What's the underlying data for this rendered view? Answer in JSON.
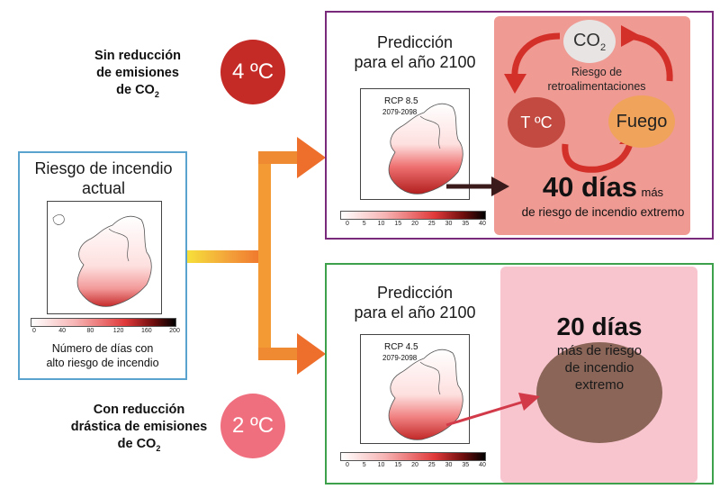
{
  "left": {
    "scenario_high": [
      "Sin reducción",
      "de emisiones",
      "de CO"
    ],
    "scenario_low": [
      "Con reducción",
      "drástica de emisiones",
      "de CO"
    ],
    "co2_subscript": "2",
    "temp_high": "4 ºC",
    "temp_low": "2 ºC",
    "current_box": {
      "title": "Riesgo de incendio actual",
      "colorbar_ticks": [
        "0",
        "40",
        "80",
        "120",
        "160",
        "200"
      ],
      "caption": [
        "Número de días con",
        "alto riesgo de incendio"
      ]
    }
  },
  "top_box": {
    "title": [
      "Predicción",
      "para el año 2100"
    ],
    "map_label": "RCP 8.5",
    "map_period": "2079-2098",
    "colorbar_ticks": [
      "0",
      "5",
      "10",
      "15",
      "20",
      "25",
      "30",
      "35",
      "40"
    ],
    "feedback": {
      "co2": "CO",
      "co2_sub": "2",
      "caption": [
        "Riesgo de",
        "retroalimentaciones"
      ],
      "temp": "T ºC",
      "fire": "Fuego"
    },
    "result_big": "40 días",
    "result_small": "más",
    "result_line2": "de riesgo de incendio extremo"
  },
  "bottom_box": {
    "title": [
      "Predicción",
      "para el año 2100"
    ],
    "map_label": "RCP 4.5",
    "map_period": "2079-2098",
    "colorbar_ticks": [
      "0",
      "5",
      "10",
      "15",
      "20",
      "25",
      "30",
      "35",
      "40"
    ],
    "result_big": "20 días",
    "result_lines": [
      "más de riesgo",
      "de incendio",
      "extremo"
    ]
  },
  "colors": {
    "purple_border": "#7a2a7a",
    "green_border": "#3da04a",
    "blue_border": "#5aa3cf",
    "top_panel": "#ef9a93",
    "bottom_panel": "#f8c5cf",
    "temp_high_circle": "#c42a26",
    "temp_low_circle": "#ef6f7f",
    "result_circle": "#8a6558"
  }
}
